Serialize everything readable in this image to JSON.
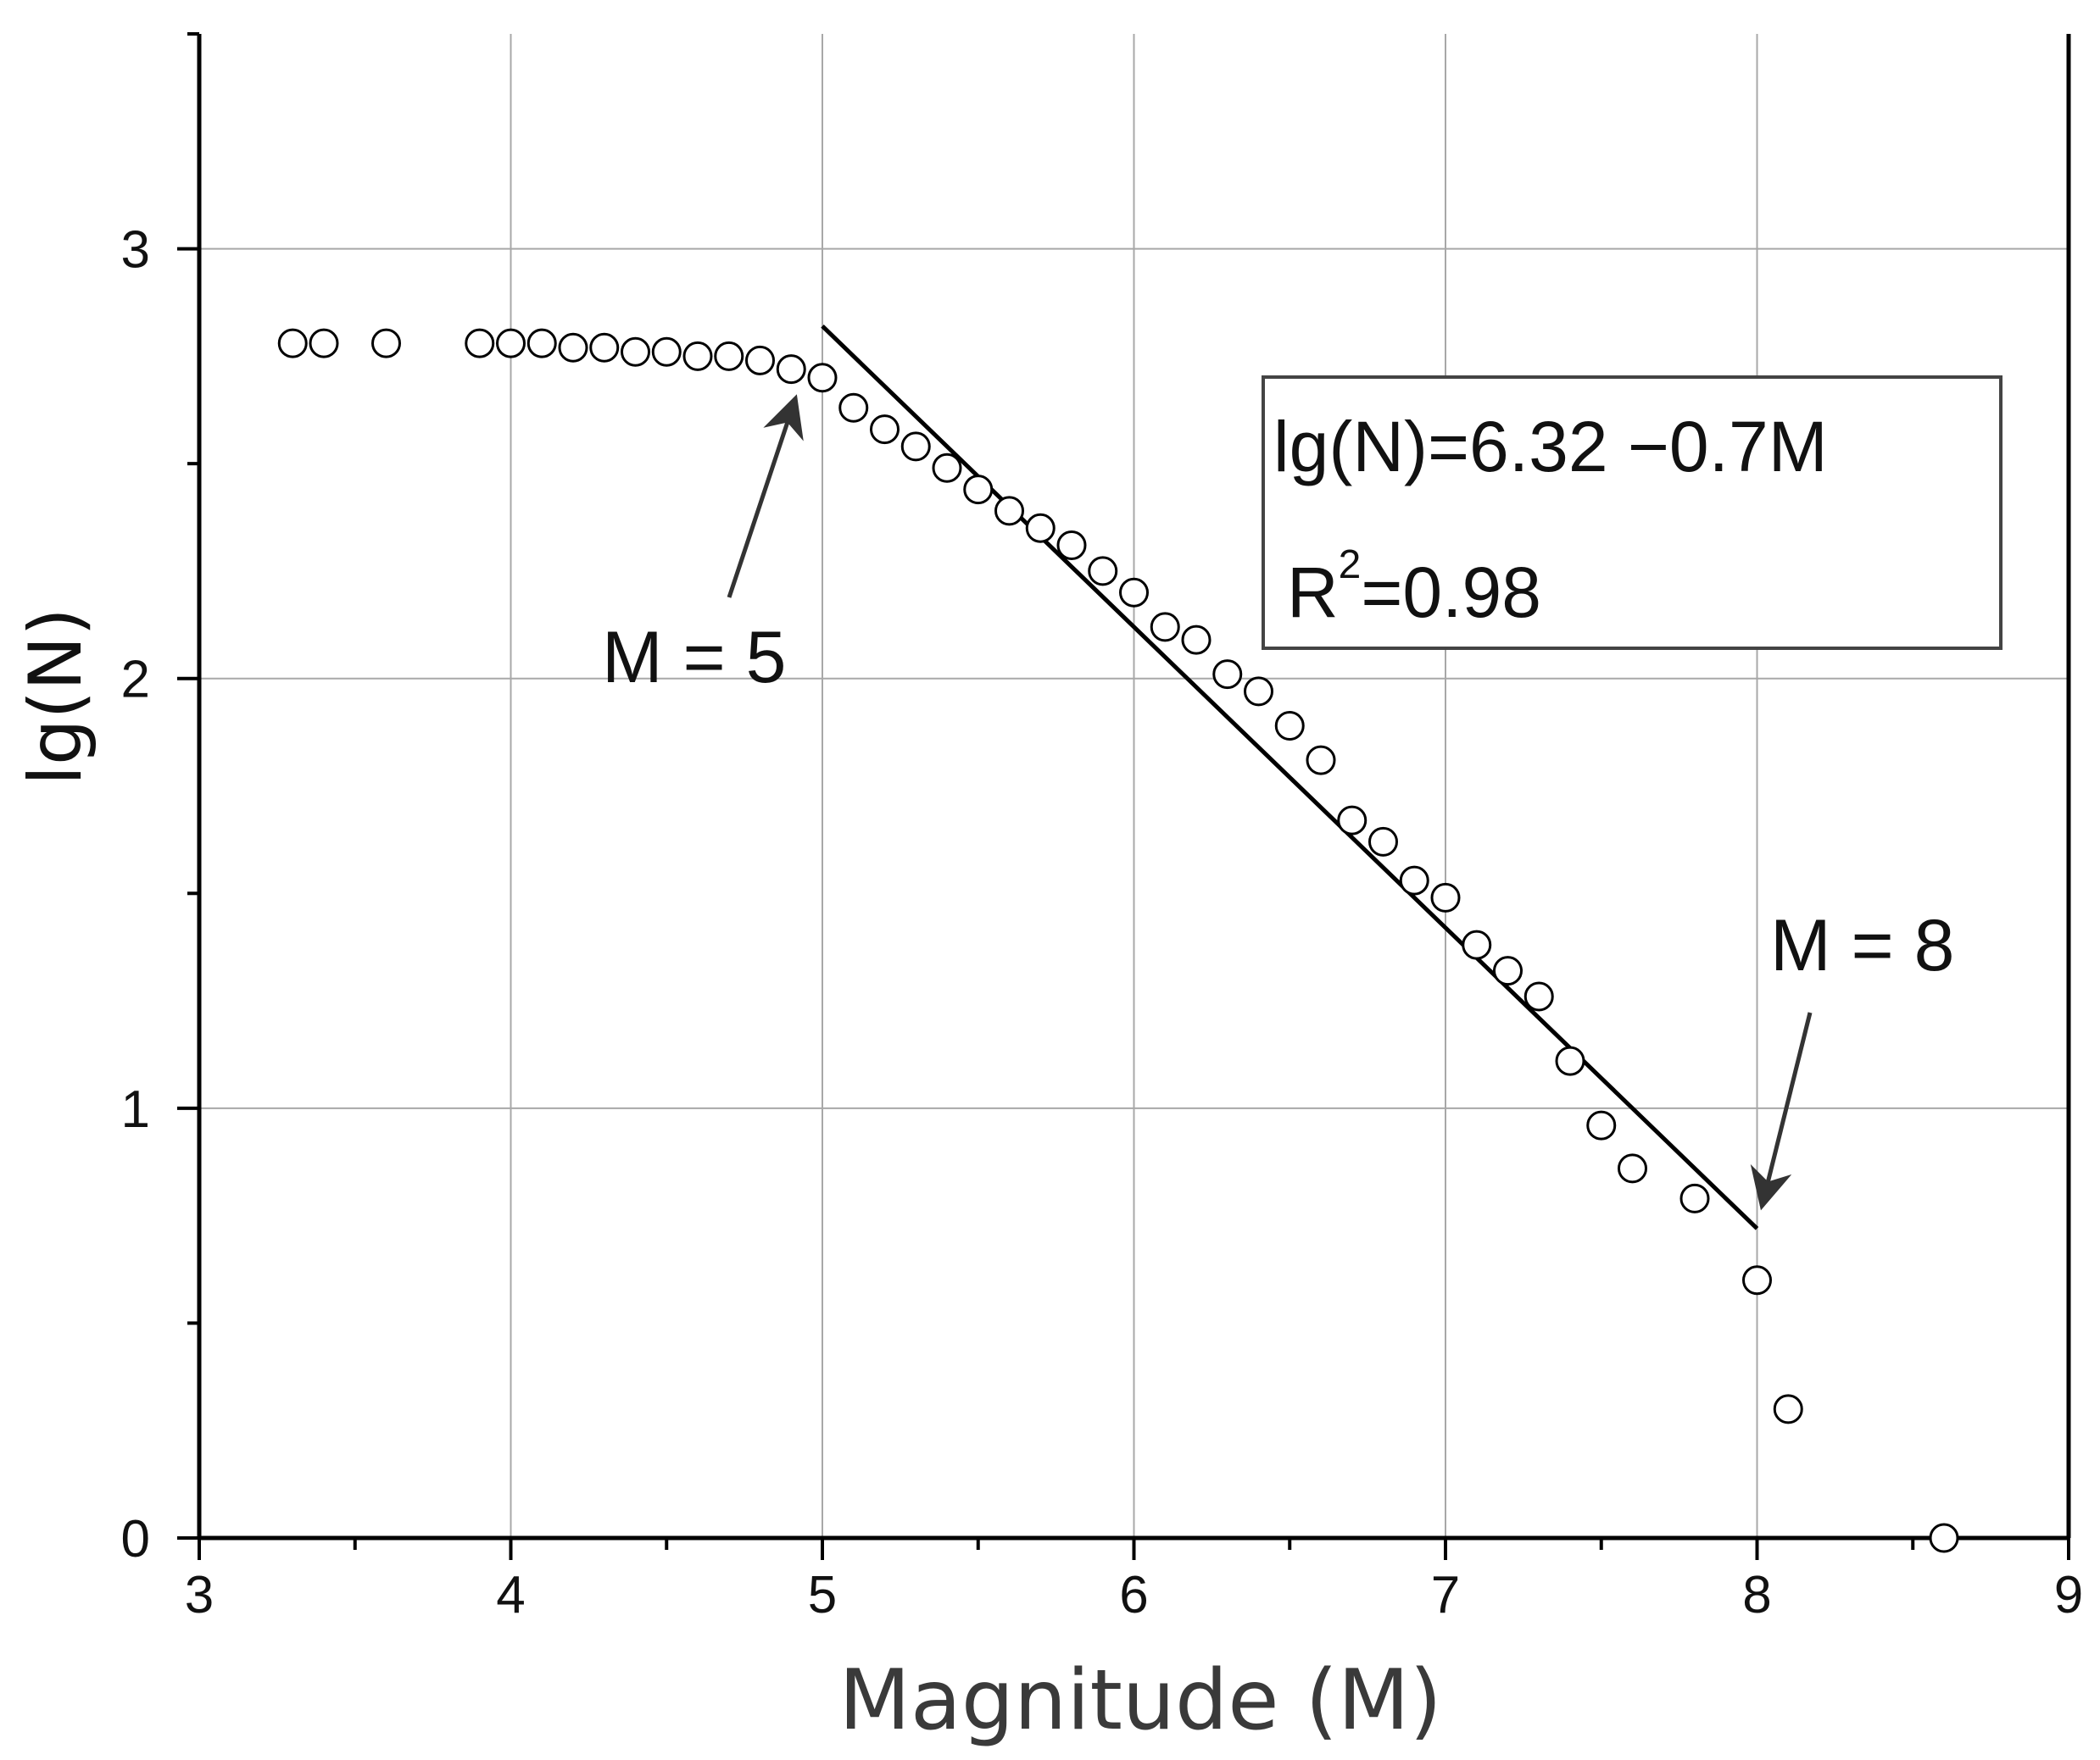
{
  "chart_data": {
    "type": "scatter",
    "title": "",
    "xlabel": "Magnitude (M)",
    "ylabel": "lg(N)",
    "xlim": [
      3,
      9
    ],
    "ylim": [
      0,
      3.5
    ],
    "x_ticks": [
      "3",
      "4",
      "5",
      "6",
      "7",
      "8",
      "9"
    ],
    "y_ticks": [
      "0",
      "1",
      "2",
      "3"
    ],
    "grid": true,
    "marker": "open-circle",
    "series": [
      {
        "points": [
          [
            3.3,
            2.78
          ],
          [
            3.4,
            2.78
          ],
          [
            3.6,
            2.78
          ],
          [
            3.9,
            2.78
          ],
          [
            4.0,
            2.78
          ],
          [
            4.1,
            2.78
          ],
          [
            4.2,
            2.77
          ],
          [
            4.3,
            2.77
          ],
          [
            4.4,
            2.76
          ],
          [
            4.5,
            2.76
          ],
          [
            4.6,
            2.75
          ],
          [
            4.7,
            2.75
          ],
          [
            4.8,
            2.74
          ],
          [
            4.9,
            2.72
          ],
          [
            5.0,
            2.7
          ],
          [
            5.1,
            2.63
          ],
          [
            5.2,
            2.58
          ],
          [
            5.3,
            2.54
          ],
          [
            5.4,
            2.49
          ],
          [
            5.5,
            2.44
          ],
          [
            5.6,
            2.39
          ],
          [
            5.7,
            2.35
          ],
          [
            5.8,
            2.31
          ],
          [
            5.9,
            2.25
          ],
          [
            6.0,
            2.2
          ],
          [
            6.1,
            2.12
          ],
          [
            6.2,
            2.09
          ],
          [
            6.3,
            2.01
          ],
          [
            6.4,
            1.97
          ],
          [
            6.5,
            1.89
          ],
          [
            6.6,
            1.81
          ],
          [
            6.7,
            1.67
          ],
          [
            6.8,
            1.62
          ],
          [
            6.9,
            1.53
          ],
          [
            7.0,
            1.49
          ],
          [
            7.1,
            1.38
          ],
          [
            7.2,
            1.32
          ],
          [
            7.3,
            1.26
          ],
          [
            7.4,
            1.11
          ],
          [
            7.5,
            0.96
          ],
          [
            7.6,
            0.86
          ],
          [
            7.8,
            0.79
          ],
          [
            8.0,
            0.6
          ],
          [
            8.1,
            0.3
          ],
          [
            8.6,
            0.0
          ]
        ]
      }
    ],
    "fit_line": {
      "x_start": 5,
      "x_end": 8,
      "intercept": 6.32,
      "slope": -0.7
    },
    "annotations": {
      "m5_label": "M = 5",
      "m5_point": [
        4.93,
        2.66
      ],
      "m8_label": "M = 8",
      "m8_point": [
        8.01,
        0.76
      ],
      "equation": "lg(N)=6.32 −0.7M",
      "r2_base": "R",
      "r2_sup": "2",
      "r2_value": "=0.98"
    }
  }
}
